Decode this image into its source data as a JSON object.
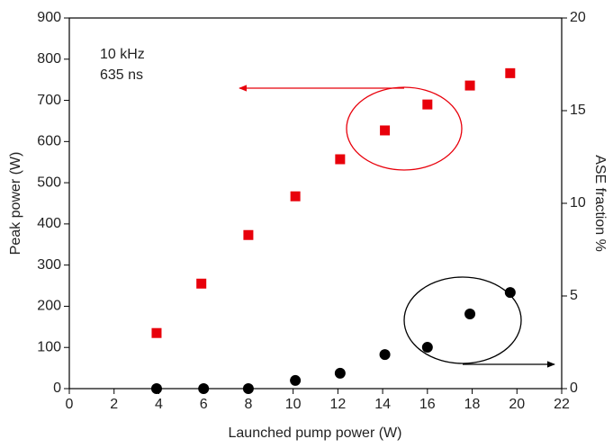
{
  "chart_data": {
    "type": "scatter",
    "xlabel": "Launched pump power (W)",
    "ylabel": "Peak power (W)",
    "y2label": "ASE fraction %",
    "annotations": [
      "10 kHz",
      "635 ns"
    ],
    "xlim": [
      0,
      22
    ],
    "xticks": [
      0,
      2,
      4,
      6,
      8,
      10,
      12,
      14,
      16,
      18,
      20,
      22
    ],
    "ylim": [
      0,
      900
    ],
    "yticks": [
      0,
      100,
      200,
      300,
      400,
      500,
      600,
      700,
      800,
      900
    ],
    "y2lim": [
      0,
      20
    ],
    "y2ticks": [
      0,
      5,
      10,
      15,
      20
    ],
    "series": [
      {
        "color": "#e8000b",
        "marker": "square",
        "x": [
          3.9,
          5.9,
          8.0,
          10.1,
          12.1,
          14.1,
          16.0,
          17.9,
          19.7
        ],
        "values": [
          135,
          255,
          373,
          467,
          557,
          627,
          690,
          736,
          766
        ]
      },
      {
        "color": "#000000",
        "marker": "circle",
        "axis": "y2",
        "x": [
          3.9,
          6.0,
          8.0,
          10.1,
          12.1,
          14.1,
          16.0,
          17.9,
          19.7
        ],
        "values": [
          0,
          0,
          0,
          0.44,
          0.83,
          1.84,
          2.23,
          4.03,
          5.19
        ]
      }
    ]
  }
}
